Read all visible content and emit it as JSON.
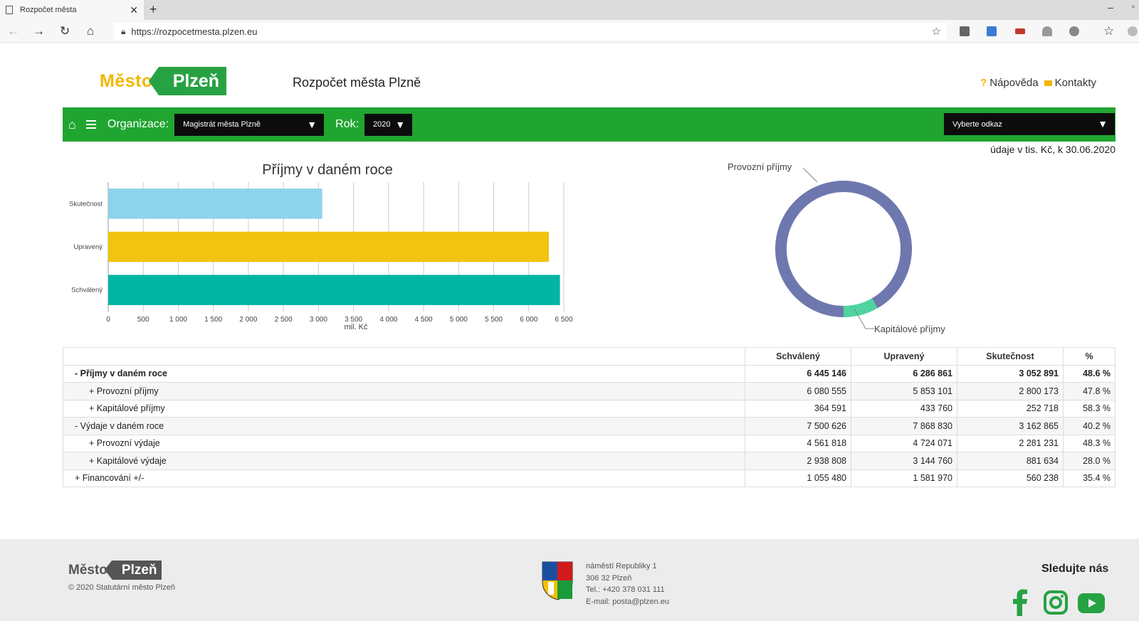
{
  "browser": {
    "tab_title": "Rozpočet města",
    "url": "https://rozpocetmesta.plzen.eu"
  },
  "header": {
    "logo_mesto": "Město",
    "logo_plzen": "Plzeň",
    "site_title": "Rozpočet města Plzně",
    "help_link": "Nápověda",
    "contacts_link": "Kontakty"
  },
  "filters": {
    "org_label": "Organizace:",
    "org_value": "Magistrát města Plzně",
    "year_label": "Rok:",
    "year_value": "2020",
    "link_placeholder": "Vyberte odkaz"
  },
  "units_note": "údaje v tis. Kč, k 30.06.2020",
  "chart_data": [
    {
      "type": "bar",
      "orientation": "horizontal",
      "title": "Příjmy v daném roce",
      "xlabel": "mil. Kč",
      "categories": [
        "Skutečnost",
        "Upravený",
        "Schválený"
      ],
      "values": [
        3053,
        6287,
        6445
      ],
      "colors": [
        "#8dd3ec",
        "#f1c40f",
        "#00b5a3"
      ],
      "xlim": [
        0,
        6500
      ],
      "xticks": [
        "0",
        "500",
        "1 000",
        "1 500",
        "2 000",
        "2 500",
        "3 000",
        "3 500",
        "4 000",
        "4 500",
        "5 000",
        "5 500",
        "6 000",
        "6 500"
      ],
      "grid": true
    },
    {
      "type": "pie",
      "donut": true,
      "labels": [
        "Provozní příjmy",
        "Kapitálové příjmy"
      ],
      "values": [
        2800173,
        252718
      ],
      "colors": [
        "#6e78ae",
        "#4fd3a0"
      ]
    }
  ],
  "table": {
    "headers": [
      "Schválený",
      "Upravený",
      "Skutečnost",
      "%"
    ],
    "rows": [
      {
        "label": "- Příjmy v daném roce",
        "level": 1,
        "bold": true,
        "values": [
          "6 445 146",
          "6 286 861",
          "3 052 891",
          "48.6 %"
        ]
      },
      {
        "label": "+ Provozní příjmy",
        "level": 2,
        "values": [
          "6 080 555",
          "5 853 101",
          "2 800 173",
          "47.8 %"
        ]
      },
      {
        "label": "+ Kapitálové příjmy",
        "level": 2,
        "values": [
          "364 591",
          "433 760",
          "252 718",
          "58.3 %"
        ]
      },
      {
        "label": "- Výdaje v daném roce",
        "level": 1,
        "values": [
          "7 500 626",
          "7 868 830",
          "3 162 865",
          "40.2 %"
        ]
      },
      {
        "label": "+ Provozní výdaje",
        "level": 2,
        "values": [
          "4 561 818",
          "4 724 071",
          "2 281 231",
          "48.3 %"
        ]
      },
      {
        "label": "+ Kapitálové výdaje",
        "level": 2,
        "values": [
          "2 938 808",
          "3 144 760",
          "881 634",
          "28.0 %"
        ]
      },
      {
        "label": "+ Financování +/-",
        "level": 1,
        "values": [
          "1 055 480",
          "1 581 970",
          "560 238",
          "35.4 %"
        ]
      }
    ]
  },
  "footer": {
    "logo_mesto": "Město",
    "logo_plzen": "Plzeň",
    "copyright": "© 2020 Statutární město Plzeň",
    "address": [
      "náměstí Republiky 1",
      "306 32 Plzeň",
      "Tel.: +420 378 031 111",
      "E-mail: posta@plzen.eu"
    ],
    "follow": "Sledujte nás"
  }
}
